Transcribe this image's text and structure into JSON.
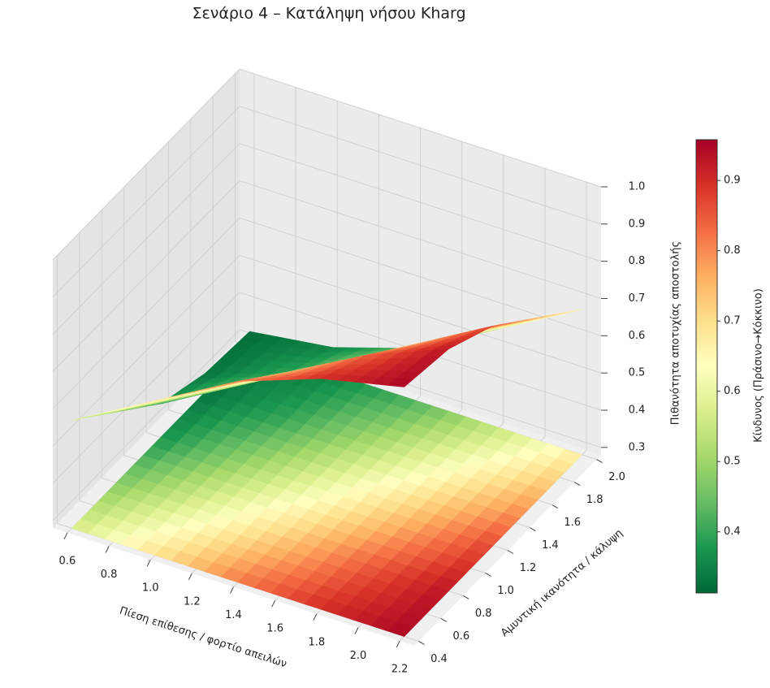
{
  "chart_data": {
    "type": "surface3d",
    "title": "Σενάριο 4 – Κατάληψη νήσου Kharg",
    "x_label": "Πίεση επίθεσης / φορτίο απειλών",
    "y_label": "Αμυντική ικανότητα / κάλυψη",
    "z_label": "Πιθανότητα αποτυχίας αποστολής",
    "x": [
      0.6,
      1.0,
      1.4,
      1.8,
      2.2
    ],
    "y": [
      0.4,
      0.8,
      1.2,
      1.6,
      2.0
    ],
    "z": [
      [
        0.57,
        0.695,
        0.82,
        0.9,
        0.95
      ],
      [
        0.47,
        0.595,
        0.72,
        0.84,
        0.93
      ],
      [
        0.37,
        0.495,
        0.62,
        0.745,
        0.87
      ],
      [
        0.33,
        0.4,
        0.52,
        0.645,
        0.77
      ],
      [
        0.32,
        0.35,
        0.42,
        0.545,
        0.67
      ]
    ],
    "xlim": [
      0.53,
      2.27
    ],
    "ylim": [
      0.36,
      2.04
    ],
    "zlim": [
      0.28,
      1.0
    ],
    "xticks": [
      0.6,
      0.8,
      {
        "value": 1,
        "label": "1.0"
      },
      1.2,
      1.4,
      1.6,
      1.8,
      {
        "value": 2,
        "label": "2.0"
      },
      2.2
    ],
    "yticks": [
      0.4,
      0.6,
      0.8,
      {
        "value": 1,
        "label": "1.0"
      },
      1.2,
      1.4,
      1.6,
      1.8,
      {
        "value": 2,
        "label": "2.0"
      }
    ],
    "zticks": [
      0.3,
      0.4,
      0.5,
      0.6,
      0.7,
      0.8,
      0.9,
      {
        "value": 1,
        "label": "1.0"
      }
    ],
    "colormap": "RdYlGn_r",
    "floor_projection": true,
    "grid": true,
    "colorbar": {
      "label": "Κίνδυνος (Πράσινο→Κόκκινο)",
      "lim": [
        0.313,
        0.958
      ],
      "ticks": [
        0.4,
        0.5,
        0.6,
        0.7,
        0.8,
        0.9
      ]
    }
  }
}
